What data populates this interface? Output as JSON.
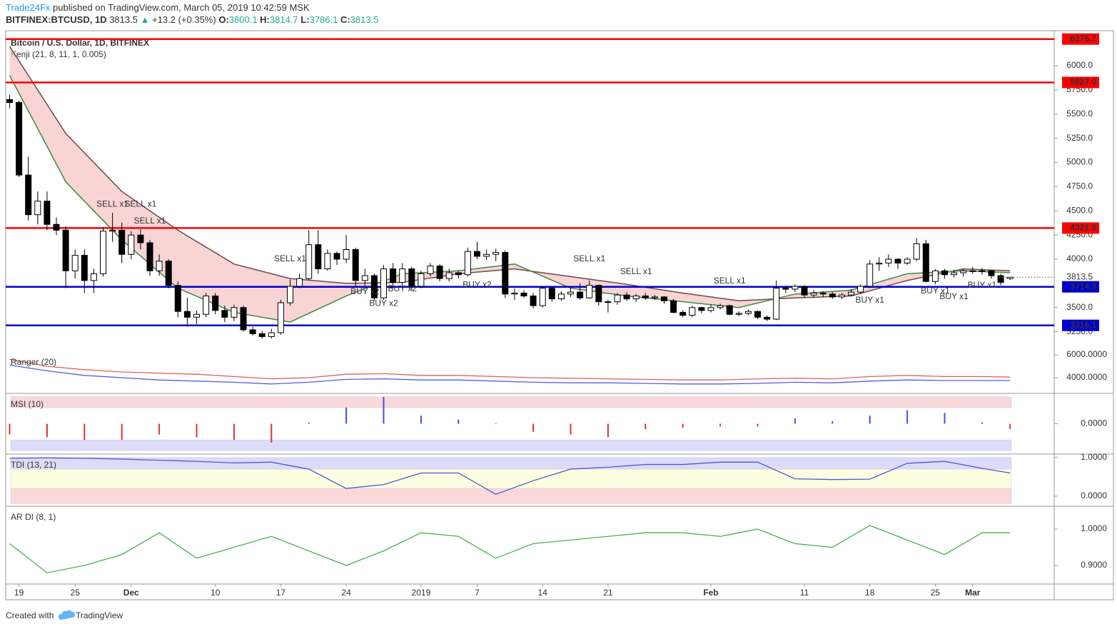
{
  "header": {
    "author": "Trade24Fx",
    "published": "published on TradingView.com, March 05, 2019 10:42:59 MSK",
    "symbol": "BITFINEX:BTCUSD, 1D",
    "price": "3813.5",
    "arrow": "▲",
    "change": "+13.2 (+0.35%)",
    "o_label": "O:",
    "o": "3800.1",
    "h_label": "H:",
    "h": "3814.7",
    "l_label": "L:",
    "l": "3786.1",
    "c_label": "C:",
    "c": "3813.5"
  },
  "footer": {
    "created": "Created with",
    "brand": "TradingView"
  },
  "chart_data": {
    "type": "candlestick",
    "title": "Bitcoin / U.S. Dollar, 1D, BITFINEX",
    "overlay_name": "Kenji (21, 8, 11, 1, 0.005)",
    "up_color": "#ffffff",
    "down_color": "#000000",
    "ylim": [
      3063,
      6362
    ],
    "yticks": [
      {
        "value": 6000,
        "label": "6000.0"
      },
      {
        "value": 5750,
        "label": "5750.0"
      },
      {
        "value": 5500,
        "label": "5500.0"
      },
      {
        "value": 5250,
        "label": "5250.0"
      },
      {
        "value": 5000,
        "label": "5000.0"
      },
      {
        "value": 4750,
        "label": "4750.0"
      },
      {
        "value": 4500,
        "label": "4500.0"
      },
      {
        "value": 4250,
        "label": "4250.0"
      },
      {
        "value": 4000,
        "label": "4000.0"
      },
      {
        "value": 3500,
        "label": "3500.0"
      },
      {
        "value": 3250,
        "label": "3250.0"
      }
    ],
    "grid": false,
    "xticks": [
      {
        "value": 1,
        "label": "19"
      },
      {
        "value": 7,
        "label": "25"
      },
      {
        "value": 13,
        "label": "Dec"
      },
      {
        "value": 22,
        "label": "10"
      },
      {
        "value": 29,
        "label": "17"
      },
      {
        "value": 36,
        "label": "24"
      },
      {
        "value": 44,
        "label": "2019"
      },
      {
        "value": 50,
        "label": "7"
      },
      {
        "value": 57,
        "label": "14"
      },
      {
        "value": 64,
        "label": "21"
      },
      {
        "value": 75,
        "label": "Feb"
      },
      {
        "value": 85,
        "label": "11"
      },
      {
        "value": 92,
        "label": "18"
      },
      {
        "value": 99,
        "label": "25"
      },
      {
        "value": 103,
        "label": "Mar"
      }
    ],
    "candles": [
      [
        5650,
        5700,
        5560,
        5620
      ],
      [
        5620,
        5640,
        4850,
        4870
      ],
      [
        4870,
        5060,
        4400,
        4460
      ],
      [
        4460,
        4700,
        4360,
        4600
      ],
      [
        4600,
        4700,
        4300,
        4360
      ],
      [
        4360,
        4430,
        4250,
        4300
      ],
      [
        4300,
        4340,
        3700,
        3880
      ],
      [
        3880,
        4100,
        3800,
        4040
      ],
      [
        4040,
        4100,
        3650,
        3780
      ],
      [
        3780,
        3900,
        3650,
        3850
      ],
      [
        3850,
        4330,
        3820,
        4290
      ],
      [
        4290,
        4480,
        4180,
        4300
      ],
      [
        4300,
        4380,
        3960,
        4050
      ],
      [
        4050,
        4290,
        4000,
        4250
      ],
      [
        4250,
        4310,
        4100,
        4170
      ],
      [
        4170,
        4200,
        3830,
        3880
      ],
      [
        3880,
        4050,
        3830,
        3980
      ],
      [
        3980,
        4000,
        3700,
        3730
      ],
      [
        3730,
        3770,
        3400,
        3460
      ],
      [
        3460,
        3600,
        3300,
        3400
      ],
      [
        3400,
        3470,
        3330,
        3430
      ],
      [
        3430,
        3650,
        3400,
        3620
      ],
      [
        3620,
        3650,
        3430,
        3470
      ],
      [
        3470,
        3520,
        3350,
        3400
      ],
      [
        3400,
        3530,
        3360,
        3500
      ],
      [
        3500,
        3520,
        3250,
        3270
      ],
      [
        3270,
        3300,
        3210,
        3230
      ],
      [
        3230,
        3260,
        3180,
        3200
      ],
      [
        3200,
        3280,
        3180,
        3240
      ],
      [
        3240,
        3580,
        3220,
        3550
      ],
      [
        3550,
        3790,
        3520,
        3720
      ],
      [
        3720,
        3850,
        3700,
        3800
      ],
      [
        3800,
        4300,
        3780,
        4150
      ],
      [
        4150,
        4300,
        3850,
        3900
      ],
      [
        3900,
        4100,
        3880,
        4060
      ],
      [
        4060,
        4080,
        3940,
        4000
      ],
      [
        4000,
        4250,
        3960,
        4100
      ],
      [
        4100,
        4120,
        3720,
        3780
      ],
      [
        3780,
        3900,
        3720,
        3830
      ],
      [
        3830,
        3850,
        3570,
        3600
      ],
      [
        3600,
        3940,
        3580,
        3900
      ],
      [
        3900,
        3960,
        3700,
        3760
      ],
      [
        3760,
        3960,
        3720,
        3900
      ],
      [
        3900,
        3920,
        3680,
        3720
      ],
      [
        3720,
        3880,
        3700,
        3850
      ],
      [
        3850,
        3960,
        3820,
        3930
      ],
      [
        3930,
        3950,
        3770,
        3800
      ],
      [
        3800,
        3900,
        3770,
        3860
      ],
      [
        3860,
        3880,
        3800,
        3840
      ],
      [
        3840,
        4120,
        3820,
        4080
      ],
      [
        4080,
        4180,
        4000,
        4030
      ],
      [
        4030,
        4100,
        3990,
        4050
      ],
      [
        4050,
        4110,
        3980,
        4070
      ],
      [
        4070,
        4090,
        3600,
        3640
      ],
      [
        3640,
        3700,
        3580,
        3650
      ],
      [
        3650,
        3680,
        3600,
        3620
      ],
      [
        3620,
        3650,
        3490,
        3520
      ],
      [
        3520,
        3720,
        3500,
        3700
      ],
      [
        3700,
        3710,
        3560,
        3590
      ],
      [
        3590,
        3670,
        3570,
        3640
      ],
      [
        3640,
        3700,
        3610,
        3660
      ],
      [
        3660,
        3750,
        3580,
        3600
      ],
      [
        3600,
        3780,
        3590,
        3730
      ],
      [
        3730,
        3740,
        3520,
        3560
      ],
      [
        3560,
        3580,
        3450,
        3560
      ],
      [
        3560,
        3650,
        3530,
        3630
      ],
      [
        3630,
        3660,
        3570,
        3590
      ],
      [
        3590,
        3640,
        3560,
        3620
      ],
      [
        3620,
        3650,
        3580,
        3600
      ],
      [
        3600,
        3630,
        3580,
        3610
      ],
      [
        3610,
        3620,
        3540,
        3570
      ],
      [
        3570,
        3590,
        3440,
        3450
      ],
      [
        3450,
        3470,
        3400,
        3420
      ],
      [
        3420,
        3520,
        3400,
        3500
      ],
      [
        3500,
        3510,
        3440,
        3470
      ],
      [
        3470,
        3530,
        3450,
        3500
      ],
      [
        3500,
        3540,
        3480,
        3520
      ],
      [
        3520,
        3530,
        3420,
        3430
      ],
      [
        3430,
        3460,
        3410,
        3440
      ],
      [
        3440,
        3480,
        3420,
        3460
      ],
      [
        3460,
        3470,
        3380,
        3400
      ],
      [
        3400,
        3420,
        3360,
        3380
      ],
      [
        3380,
        3780,
        3370,
        3700
      ],
      [
        3700,
        3720,
        3650,
        3690
      ],
      [
        3690,
        3740,
        3660,
        3720
      ],
      [
        3720,
        3730,
        3600,
        3630
      ],
      [
        3630,
        3680,
        3600,
        3650
      ],
      [
        3650,
        3670,
        3610,
        3640
      ],
      [
        3640,
        3660,
        3590,
        3610
      ],
      [
        3610,
        3650,
        3590,
        3630
      ],
      [
        3630,
        3690,
        3620,
        3660
      ],
      [
        3660,
        3740,
        3640,
        3720
      ],
      [
        3720,
        3990,
        3700,
        3950
      ],
      [
        3950,
        4020,
        3880,
        3960
      ],
      [
        3960,
        4050,
        3920,
        4000
      ],
      [
        4000,
        4010,
        3900,
        3960
      ],
      [
        3960,
        4020,
        3940,
        4000
      ],
      [
        4000,
        4220,
        3980,
        4160
      ],
      [
        4160,
        4200,
        3760,
        3770
      ],
      [
        3770,
        3900,
        3740,
        3880
      ],
      [
        3880,
        3900,
        3800,
        3840
      ],
      [
        3840,
        3890,
        3810,
        3860
      ],
      [
        3860,
        3900,
        3820,
        3880
      ],
      [
        3880,
        3920,
        3850,
        3880
      ],
      [
        3880,
        3910,
        3840,
        3880
      ],
      [
        3880,
        3890,
        3800,
        3830
      ],
      [
        3830,
        3850,
        3730,
        3760
      ],
      [
        3800.1,
        3814.7,
        3786.1,
        3813.5
      ]
    ],
    "levels": [
      {
        "value": 6275.7,
        "color": "#ff0000"
      },
      {
        "value": 5827,
        "label": "5827.0",
        "color": "#ff0000"
      },
      {
        "value": 4321.9,
        "color": "#ff0000"
      },
      {
        "value": 3714.3,
        "color": "#0000cc"
      },
      {
        "value": 3316.1,
        "color": "#0000cc"
      }
    ],
    "last_price": 3813.5,
    "kenji": {
      "x": [
        0,
        6,
        12,
        18,
        24,
        30,
        36,
        42,
        48,
        54,
        60,
        66,
        72,
        78,
        84,
        90,
        96,
        102,
        107
      ],
      "slow": [
        6200,
        5300,
        4700,
        4300,
        3950,
        3800,
        3750,
        3760,
        3850,
        3900,
        3820,
        3740,
        3650,
        3570,
        3600,
        3620,
        3780,
        3900,
        3880
      ],
      "fast": [
        5900,
        4800,
        4200,
        3700,
        3450,
        3350,
        3620,
        3850,
        3880,
        3950,
        3700,
        3620,
        3560,
        3500,
        3640,
        3680,
        3850,
        3880,
        3860
      ],
      "slow_color": "#6b4a4a",
      "fast_color": "#3c8a3c",
      "cloud_color": "#f7c6c6"
    },
    "annotations": [
      {
        "text": "SELL x1",
        "x": 11,
        "price": 4568,
        "color": "#e05050"
      },
      {
        "text": "SELL x1",
        "x": 14,
        "price": 4568,
        "color": "#e05050"
      },
      {
        "text": "SELL x1",
        "x": 15,
        "price": 4391,
        "color": "#e05050"
      },
      {
        "text": "SELL x1",
        "x": 30,
        "price": 4000,
        "color": "#e05050"
      },
      {
        "text": "SELL x1",
        "x": 62,
        "price": 4000,
        "color": "#e05050"
      },
      {
        "text": "SELL x1",
        "x": 67,
        "price": 3867,
        "color": "#e05050"
      },
      {
        "text": "SELL x1",
        "x": 77,
        "price": 3771,
        "color": "#e05050"
      },
      {
        "text": "BUY x2",
        "x": 38,
        "price": 3661,
        "color": "#5a6ad8"
      },
      {
        "text": "BUY x2",
        "x": 40,
        "price": 3542,
        "color": "#5a6ad8"
      },
      {
        "text": "BUY x2",
        "x": 42,
        "price": 3690,
        "color": "#5a6ad8"
      },
      {
        "text": "BUY x2",
        "x": 50,
        "price": 3734,
        "color": "#5a6ad8"
      },
      {
        "text": "BUY x1",
        "x": 92,
        "price": 3572,
        "color": "#5a6ad8"
      },
      {
        "text": "BUY x1",
        "x": 99,
        "price": 3668,
        "color": "#5a6ad8"
      },
      {
        "text": "BUY x1",
        "x": 101,
        "price": 3609,
        "color": "#5a6ad8"
      },
      {
        "text": "BUY x1",
        "x": 104,
        "price": 3727,
        "color": "#5a6ad8"
      }
    ],
    "indicator_x": [
      0,
      4,
      8,
      12,
      16,
      20,
      24,
      28,
      32,
      36,
      40,
      44,
      48,
      52,
      56,
      60,
      64,
      68,
      72,
      76,
      80,
      84,
      88,
      92,
      96,
      100,
      104,
      107
    ],
    "indicators": [
      {
        "type": "bands",
        "name": "Ranger (20)",
        "ylim": [
          2687,
          6250
        ],
        "yticks": [
          {
            "value": 6000,
            "label": "6000.0000"
          },
          {
            "value": 4000,
            "label": "4000.0000"
          }
        ],
        "series": [
          {
            "color": "#e06060",
            "values": [
              5600,
              5000,
              4700,
              4500,
              4400,
              4300,
              4100,
              3900,
              4000,
              4300,
              4350,
              4200,
              4200,
              4100,
              4000,
              3950,
              3900,
              3850,
              3800,
              3800,
              3900,
              3950,
              3900,
              4100,
              4200,
              4100,
              4100,
              4050
            ]
          },
          {
            "color": "#5060e0",
            "values": [
              5100,
              4600,
              4200,
              4000,
              3800,
              3700,
              3600,
              3450,
              3600,
              3850,
              3900,
              3800,
              3800,
              3700,
              3600,
              3550,
              3550,
              3500,
              3450,
              3450,
              3500,
              3600,
              3550,
              3700,
              3800,
              3750,
              3750,
              3750
            ]
          }
        ]
      },
      {
        "type": "bars",
        "name": "MSI (10)",
        "ylim": [
          -1.1,
          1.1
        ],
        "yticks": [
          {
            "value": 0,
            "label": "0.0000"
          }
        ],
        "zones": [
          {
            "from": 0.6,
            "to": 1,
            "color": "#fbd8d8"
          },
          {
            "from": -1,
            "to": -0.6,
            "color": "#dcdcf8"
          }
        ],
        "pos_color": "#4050e0",
        "neg_color": "#e03030",
        "values": [
          -0.4,
          -0.5,
          -0.6,
          -0.6,
          -0.4,
          -0.5,
          -0.6,
          -0.7,
          0.05,
          0.6,
          1.0,
          0.3,
          0.15,
          0.02,
          -0.3,
          -0.4,
          -0.5,
          -0.2,
          -0.15,
          -0.1,
          -0.1,
          0.2,
          0.1,
          0.3,
          0.5,
          0.4,
          0.05,
          -0.2
        ]
      },
      {
        "type": "line",
        "name": "TDI (13, 21)",
        "ylim": [
          -0.24,
          1.07
        ],
        "yticks": [
          {
            "value": 1,
            "label": "1.0000"
          },
          {
            "value": 0,
            "label": "0.0000"
          }
        ],
        "zones": [
          {
            "from": 0.7,
            "to": 1,
            "color": "#dcdcf8"
          },
          {
            "from": 0.2,
            "to": 0.7,
            "color": "#fdfde0"
          },
          {
            "from": -0.19,
            "to": 0.2,
            "color": "#fbd8d8"
          }
        ],
        "color": "#4a5bd4",
        "values": [
          0.98,
          0.99,
          0.98,
          0.96,
          0.93,
          0.9,
          0.86,
          0.88,
          0.7,
          0.2,
          0.3,
          0.6,
          0.6,
          0.05,
          0.4,
          0.7,
          0.75,
          0.82,
          0.82,
          0.88,
          0.88,
          0.45,
          0.43,
          0.44,
          0.85,
          0.9,
          0.72,
          0.6
        ]
      },
      {
        "type": "line",
        "name": "AR DI (8, 1)",
        "ylim": [
          0.849,
          1.061
        ],
        "yticks": [
          {
            "value": 1,
            "label": "1.0000"
          },
          {
            "value": 0.9,
            "label": "0.9000"
          }
        ],
        "color": "#4caf50",
        "values": [
          0.96,
          0.88,
          0.9,
          0.93,
          0.99,
          0.92,
          0.95,
          0.98,
          0.94,
          0.9,
          0.94,
          0.99,
          0.98,
          0.92,
          0.96,
          0.97,
          0.98,
          0.99,
          0.99,
          0.98,
          1.0,
          0.96,
          0.95,
          1.01,
          0.97,
          0.93,
          0.99,
          0.99
        ]
      }
    ]
  }
}
